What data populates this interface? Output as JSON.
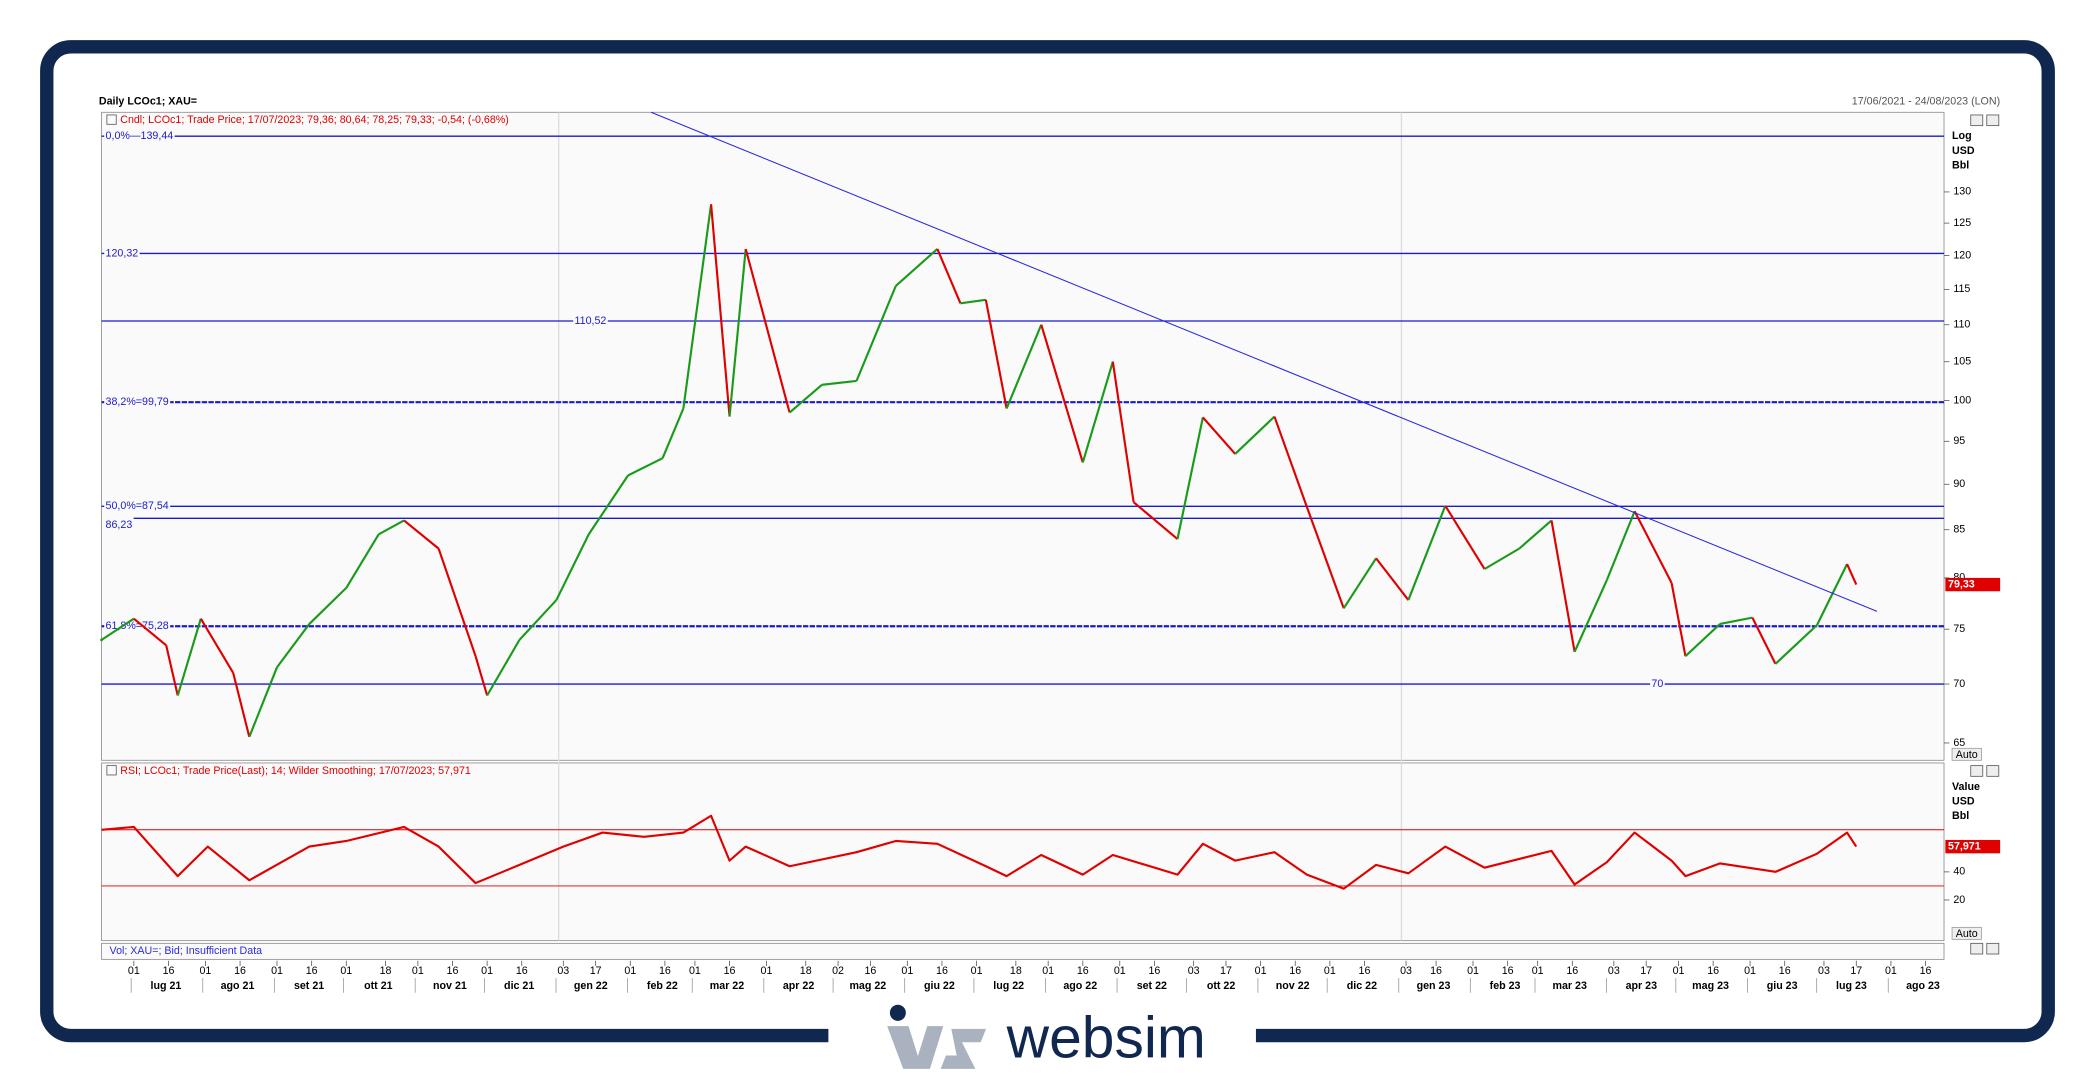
{
  "header": {
    "title": "Daily LCOc1; XAU=",
    "range": "17/06/2021 - 24/08/2023 (LON)",
    "brand": "websim",
    "vol_legend": "Vol; XAU=; Bid; Insufficient Data",
    "auto": "Auto"
  },
  "chart_data": [
    {
      "type": "line",
      "legend": "Cndl; LCOc1; Trade Price; 17/07/2023; 79,36; 80,64; 78,25; 79,33; -0,54; (-0,68%)",
      "axis_labels": [
        "Log",
        "USD",
        "Bbl"
      ],
      "log_scale": true,
      "up_color": "#1a9a1a",
      "down_color": "#e00000",
      "xlim": [
        "2021-06-17",
        "2023-08-24"
      ],
      "ylim": [
        63.6,
        143.7
      ],
      "yticks": [
        65,
        70,
        75,
        80,
        85,
        90,
        95,
        100,
        105,
        110,
        115,
        120,
        125,
        130
      ],
      "xticks": [
        {
          "value": "2021-07-01",
          "label": "01"
        },
        {
          "value": "2021-07-16",
          "label": "16"
        },
        {
          "value": "2021-08-01",
          "label": "01"
        },
        {
          "value": "2021-08-16",
          "label": "16"
        },
        {
          "value": "2021-09-01",
          "label": "01"
        },
        {
          "value": "2021-09-16",
          "label": "16"
        },
        {
          "value": "2021-10-01",
          "label": "01"
        },
        {
          "value": "2021-10-18",
          "label": "18"
        },
        {
          "value": "2021-11-01",
          "label": "01"
        },
        {
          "value": "2021-11-16",
          "label": "16"
        },
        {
          "value": "2021-12-01",
          "label": "01"
        },
        {
          "value": "2021-12-16",
          "label": "16"
        },
        {
          "value": "2022-01-03",
          "label": "03"
        },
        {
          "value": "2022-01-17",
          "label": "17"
        },
        {
          "value": "2022-02-01",
          "label": "01"
        },
        {
          "value": "2022-02-16",
          "label": "16"
        },
        {
          "value": "2022-03-01",
          "label": "01"
        },
        {
          "value": "2022-03-16",
          "label": "16"
        },
        {
          "value": "2022-04-01",
          "label": "01"
        },
        {
          "value": "2022-04-18",
          "label": "18"
        },
        {
          "value": "2022-05-02",
          "label": "02"
        },
        {
          "value": "2022-05-16",
          "label": "16"
        },
        {
          "value": "2022-06-01",
          "label": "01"
        },
        {
          "value": "2022-06-16",
          "label": "16"
        },
        {
          "value": "2022-07-01",
          "label": "01"
        },
        {
          "value": "2022-07-18",
          "label": "18"
        },
        {
          "value": "2022-08-01",
          "label": "01"
        },
        {
          "value": "2022-08-16",
          "label": "16"
        },
        {
          "value": "2022-09-01",
          "label": "01"
        },
        {
          "value": "2022-09-16",
          "label": "16"
        },
        {
          "value": "2022-10-03",
          "label": "03"
        },
        {
          "value": "2022-10-17",
          "label": "17"
        },
        {
          "value": "2022-11-01",
          "label": "01"
        },
        {
          "value": "2022-11-16",
          "label": "16"
        },
        {
          "value": "2022-12-01",
          "label": "01"
        },
        {
          "value": "2022-12-16",
          "label": "16"
        },
        {
          "value": "2023-01-03",
          "label": "03"
        },
        {
          "value": "2023-01-16",
          "label": "16"
        },
        {
          "value": "2023-02-01",
          "label": "01"
        },
        {
          "value": "2023-02-16",
          "label": "16"
        },
        {
          "value": "2023-03-01",
          "label": "01"
        },
        {
          "value": "2023-03-16",
          "label": "16"
        },
        {
          "value": "2023-04-03",
          "label": "03"
        },
        {
          "value": "2023-04-17",
          "label": "17"
        },
        {
          "value": "2023-05-01",
          "label": "01"
        },
        {
          "value": "2023-05-16",
          "label": "16"
        },
        {
          "value": "2023-06-01",
          "label": "01"
        },
        {
          "value": "2023-06-16",
          "label": "16"
        },
        {
          "value": "2023-07-03",
          "label": "03"
        },
        {
          "value": "2023-07-17",
          "label": "17"
        },
        {
          "value": "2023-08-01",
          "label": "01"
        },
        {
          "value": "2023-08-16",
          "label": "16"
        }
      ],
      "months": [
        {
          "value": "2021-07-01",
          "label": "lug 21"
        },
        {
          "value": "2021-08-01",
          "label": "ago 21"
        },
        {
          "value": "2021-09-01",
          "label": "set 21"
        },
        {
          "value": "2021-10-01",
          "label": "ott 21"
        },
        {
          "value": "2021-11-01",
          "label": "nov 21"
        },
        {
          "value": "2021-12-01",
          "label": "dic 21"
        },
        {
          "value": "2022-01-01",
          "label": "gen 22"
        },
        {
          "value": "2022-02-01",
          "label": "feb 22"
        },
        {
          "value": "2022-03-01",
          "label": "mar 22"
        },
        {
          "value": "2022-04-01",
          "label": "apr 22"
        },
        {
          "value": "2022-05-01",
          "label": "mag 22"
        },
        {
          "value": "2022-06-01",
          "label": "giu 22"
        },
        {
          "value": "2022-07-01",
          "label": "lug 22"
        },
        {
          "value": "2022-08-01",
          "label": "ago 22"
        },
        {
          "value": "2022-09-01",
          "label": "set 22"
        },
        {
          "value": "2022-10-01",
          "label": "ott 22"
        },
        {
          "value": "2022-11-01",
          "label": "nov 22"
        },
        {
          "value": "2022-12-01",
          "label": "dic 22"
        },
        {
          "value": "2023-01-01",
          "label": "gen 23"
        },
        {
          "value": "2023-02-01",
          "label": "feb 23"
        },
        {
          "value": "2023-03-01",
          "label": "mar 23"
        },
        {
          "value": "2023-04-01",
          "label": "apr 23"
        },
        {
          "value": "2023-05-01",
          "label": "mag 23"
        },
        {
          "value": "2023-06-01",
          "label": "giu 23"
        },
        {
          "value": "2023-07-01",
          "label": "lug 23"
        },
        {
          "value": "2023-08-01",
          "label": "ago 23"
        }
      ],
      "x": [
        "2021-06-17",
        "2021-07-01",
        "2021-07-15",
        "2021-07-20",
        "2021-07-30",
        "2021-08-13",
        "2021-08-20",
        "2021-09-01",
        "2021-09-15",
        "2021-10-01",
        "2021-10-15",
        "2021-10-26",
        "2021-11-10",
        "2021-11-26",
        "2021-12-01",
        "2021-12-15",
        "2021-12-31",
        "2022-01-14",
        "2022-01-31",
        "2022-02-15",
        "2022-02-24",
        "2022-03-08",
        "2022-03-16",
        "2022-03-23",
        "2022-04-11",
        "2022-04-25",
        "2022-05-10",
        "2022-05-27",
        "2022-06-14",
        "2022-06-24",
        "2022-07-05",
        "2022-07-14",
        "2022-07-29",
        "2022-08-16",
        "2022-08-29",
        "2022-09-07",
        "2022-09-26",
        "2022-10-07",
        "2022-10-21",
        "2022-11-07",
        "2022-11-21",
        "2022-12-07",
        "2022-12-21",
        "2023-01-04",
        "2023-01-20",
        "2023-02-06",
        "2023-02-21",
        "2023-03-07",
        "2023-03-17",
        "2023-03-31",
        "2023-04-12",
        "2023-04-28",
        "2023-05-04",
        "2023-05-19",
        "2023-06-02",
        "2023-06-12",
        "2023-06-30",
        "2023-07-13",
        "2023-07-17"
      ],
      "values": [
        74,
        76,
        73.5,
        69,
        76,
        71,
        65.5,
        71.5,
        75.5,
        79,
        84.5,
        86,
        83,
        72.5,
        69,
        74,
        77.8,
        84.5,
        91,
        93,
        99,
        128,
        98,
        121,
        98.5,
        102,
        102.5,
        115.5,
        121,
        113,
        113.5,
        99,
        110,
        92.5,
        105,
        88,
        84,
        97.9,
        93.5,
        98,
        87.5,
        77,
        82,
        77.8,
        87.6,
        80.9,
        83,
        86,
        72.9,
        79.8,
        87,
        79.5,
        72.5,
        75.5,
        76.1,
        71.8,
        75.4,
        81.4,
        79.33
      ],
      "last": {
        "value": 79.33,
        "label": "79,33"
      },
      "levels": [
        {
          "value": 139.44,
          "label": "0,0%—139,44",
          "dashed": false
        },
        {
          "value": 120.32,
          "label": "120,32",
          "dashed": false
        },
        {
          "value": 110.52,
          "label": "110,52",
          "dashed": false
        },
        {
          "value": 99.79,
          "label": "38,2%=99,79",
          "dashed": true
        },
        {
          "value": 87.54,
          "label": "50,0%=87,54",
          "dashed": false
        },
        {
          "value": 86.23,
          "label": "86,23",
          "dashed": false
        },
        {
          "value": 75.28,
          "label": "61,8%=75,28",
          "dashed": true
        },
        {
          "value": 70,
          "label": "70",
          "dashed": false
        }
      ],
      "trendline": {
        "x": [
          "2022-02-10",
          "2023-07-26"
        ],
        "values": [
          143.7,
          76.7
        ],
        "color": "#2a2ae0"
      }
    },
    {
      "type": "line",
      "legend": "RSI; LCOc1; Trade Price(Last);  14; Wilder Smoothing;  17/07/2023; 57,971",
      "axis_labels": [
        "Value",
        "USD",
        "Bbl"
      ],
      "xlim": [
        "2021-06-17",
        "2023-08-24"
      ],
      "ylim": [
        -9,
        117.6
      ],
      "yticks": [
        20,
        40
      ],
      "levels": [
        70,
        30
      ],
      "series": [
        {
          "name": "RSI",
          "color": "#e00000",
          "x": [
            "2021-06-17",
            "2021-07-01",
            "2021-07-20",
            "2021-08-02",
            "2021-08-20",
            "2021-09-15",
            "2021-10-01",
            "2021-10-26",
            "2021-11-10",
            "2021-11-26",
            "2021-12-15",
            "2022-01-03",
            "2022-01-20",
            "2022-02-07",
            "2022-02-24",
            "2022-03-08",
            "2022-03-16",
            "2022-03-23",
            "2022-04-11",
            "2022-05-10",
            "2022-05-27",
            "2022-06-14",
            "2022-07-05",
            "2022-07-14",
            "2022-07-29",
            "2022-08-16",
            "2022-08-29",
            "2022-09-26",
            "2022-10-07",
            "2022-10-21",
            "2022-11-07",
            "2022-11-21",
            "2022-12-07",
            "2022-12-21",
            "2023-01-04",
            "2023-01-20",
            "2023-02-06",
            "2023-03-07",
            "2023-03-17",
            "2023-03-31",
            "2023-04-12",
            "2023-04-28",
            "2023-05-04",
            "2023-05-19",
            "2023-06-12",
            "2023-06-30",
            "2023-07-13",
            "2023-07-17"
          ],
          "values": [
            70,
            72,
            37,
            58,
            34,
            58,
            62,
            72,
            58,
            32,
            45,
            58,
            68,
            65,
            68,
            80,
            48,
            58,
            44,
            54,
            62,
            60,
            44,
            37,
            52,
            38,
            52,
            38,
            60,
            48,
            54,
            38,
            28,
            45,
            39,
            58,
            43,
            55,
            31,
            47,
            68,
            48,
            37,
            46,
            40,
            53,
            68,
            57.971
          ]
        }
      ],
      "last": {
        "value": 57.971,
        "label": "57,971"
      }
    }
  ]
}
